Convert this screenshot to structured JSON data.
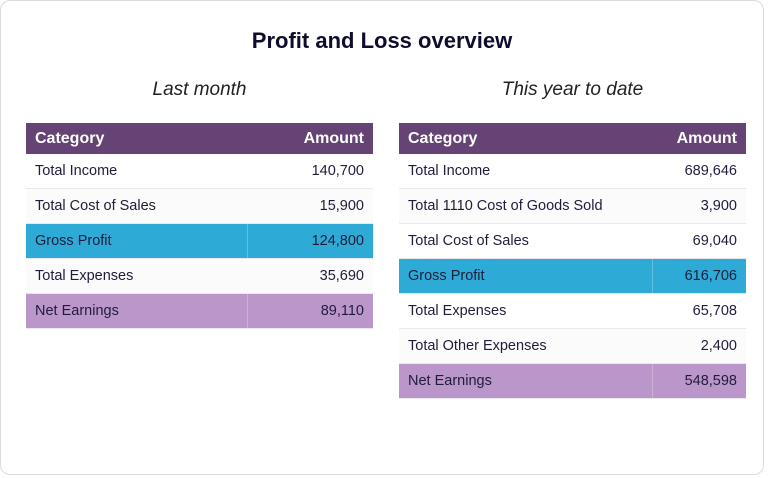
{
  "title": "Profit and Loss overview",
  "colors": {
    "header": "#654374",
    "gross_profit": "#2eaad6",
    "net_earnings": "#bb96cb"
  },
  "tables": [
    {
      "subtitle": "Last month",
      "headers": [
        "Category",
        "Amount"
      ],
      "rows": [
        {
          "category": "Total Income",
          "amount": "140,700",
          "type": "normal"
        },
        {
          "category": "Total Cost of Sales",
          "amount": "15,900",
          "type": "alt"
        },
        {
          "category": "Gross Profit",
          "amount": "124,800",
          "type": "gross"
        },
        {
          "category": "Total Expenses",
          "amount": "35,690",
          "type": "alt"
        },
        {
          "category": "Net Earnings",
          "amount": "89,110",
          "type": "net"
        }
      ]
    },
    {
      "subtitle": "This year to date",
      "headers": [
        "Category",
        "Amount"
      ],
      "rows": [
        {
          "category": "Total Income",
          "amount": "689,646",
          "type": "normal"
        },
        {
          "category": "Total 1110 Cost of Goods Sold",
          "amount": "3,900",
          "type": "alt"
        },
        {
          "category": "Total Cost of Sales",
          "amount": "69,040",
          "type": "normal"
        },
        {
          "category": "Gross Profit",
          "amount": "616,706",
          "type": "gross"
        },
        {
          "category": "Total Expenses",
          "amount": "65,708",
          "type": "normal"
        },
        {
          "category": "Total Other Expenses",
          "amount": "2,400",
          "type": "alt"
        },
        {
          "category": "Net Earnings",
          "amount": "548,598",
          "type": "net"
        }
      ]
    }
  ]
}
